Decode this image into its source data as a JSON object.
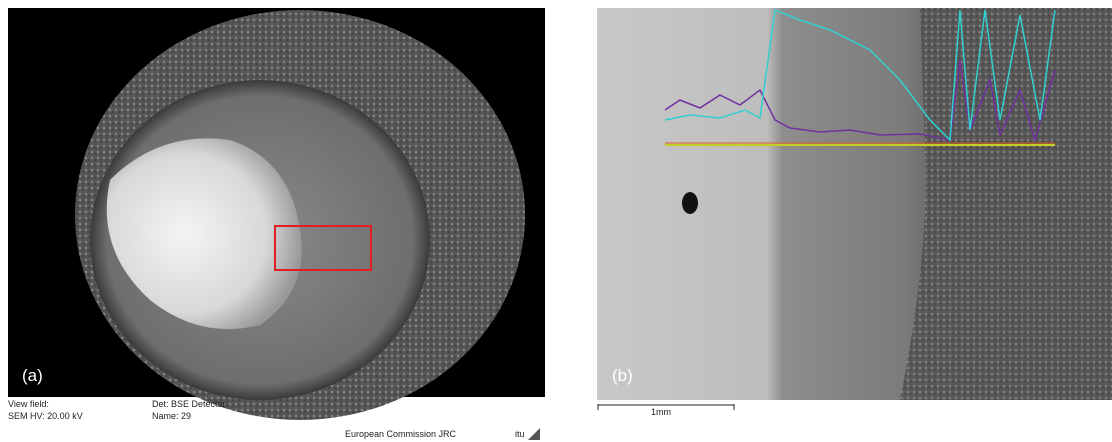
{
  "panels": [
    {
      "label": "(a)",
      "info": {
        "view_field": "View field:",
        "hv": "SEM HV: 20.00 kV",
        "detector": "Det: BSE Detector",
        "name": "Name: 29",
        "org": "European Commission   JRC",
        "logo": "itu"
      }
    },
    {
      "label": "(b)",
      "scale_bar": "1mm"
    }
  ]
}
